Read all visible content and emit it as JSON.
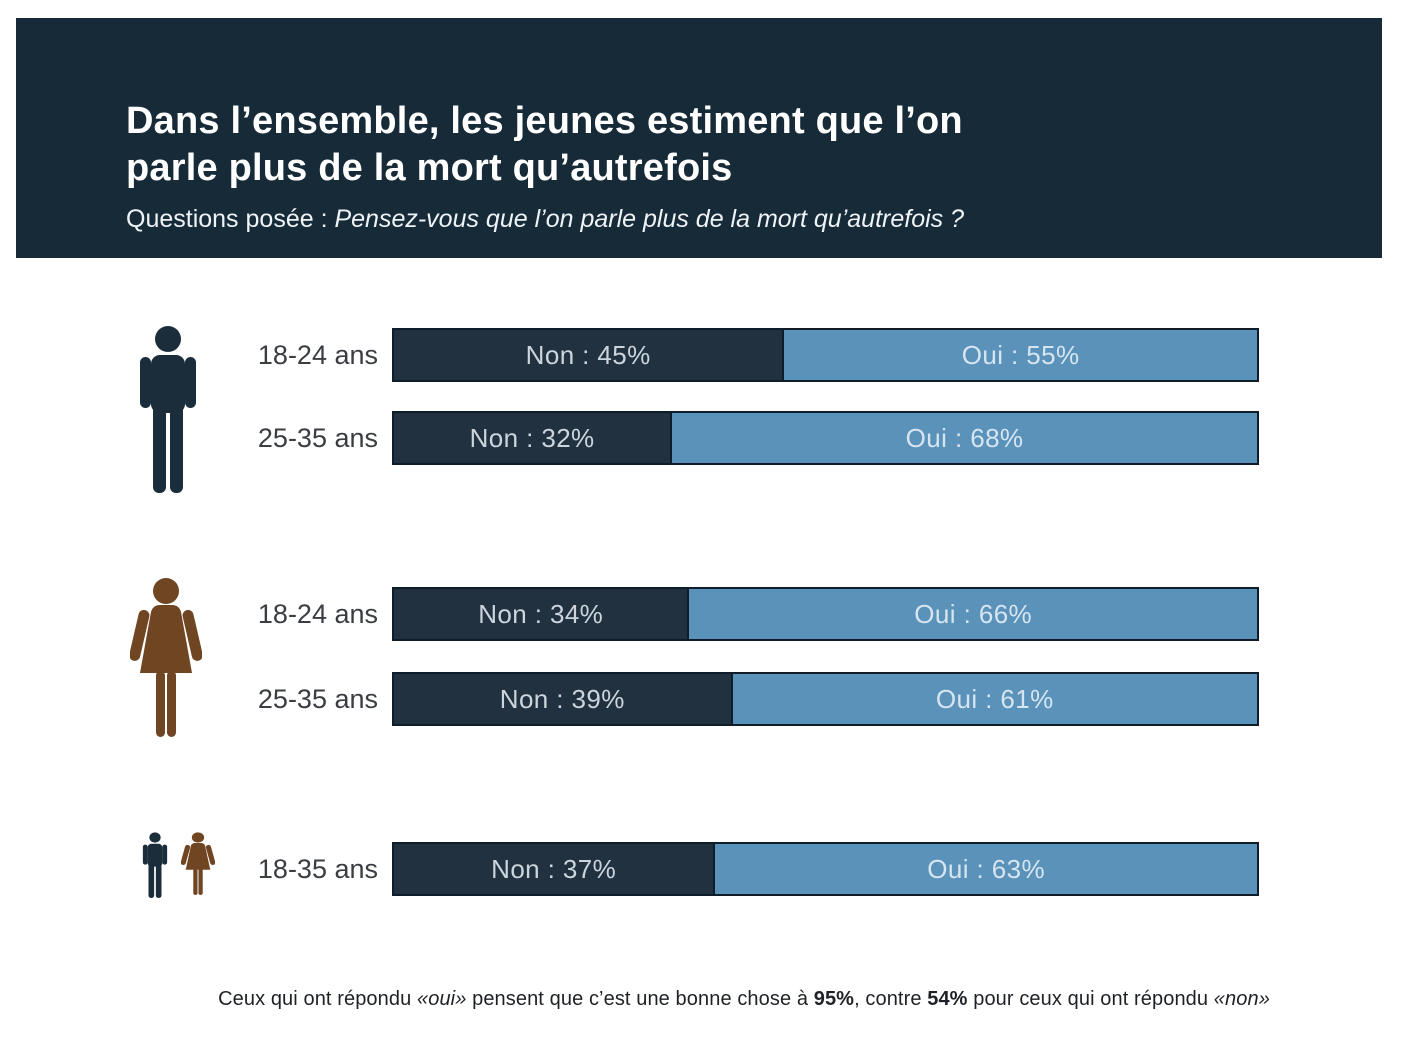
{
  "header": {
    "title_line1": "Dans l’ensemble, les jeunes estiment que l’on",
    "title_line2": "parle plus de la mort qu’autrefois",
    "question_prefix": "Questions posée : ",
    "question": "Pensez-vous que l’on parle plus de la mort qu’autrefois ?"
  },
  "chart_data": {
    "type": "bar",
    "orientation": "horizontal",
    "stacked": true,
    "unit": "%",
    "series_labels": [
      "Non",
      "Oui"
    ],
    "colors": {
      "non_fill": "#22313f",
      "oui_fill": "#5a92ba",
      "bar_border": "#0e1d29",
      "header_bg": "#172a38",
      "male_icon": "#1b2c3b",
      "female_icon": "#6f4522"
    },
    "groups": [
      {
        "icon": "male-icon",
        "icon_color": "#1b2c3b",
        "rows": [
          {
            "label": "18-24 ans",
            "non_pct": 45,
            "oui_pct": 55,
            "non_label": "Non : 45%",
            "oui_label": "Oui : 55%"
          },
          {
            "label": "25-35 ans",
            "non_pct": 32,
            "oui_pct": 68,
            "non_label": "Non : 32%",
            "oui_label": "Oui : 68%"
          }
        ]
      },
      {
        "icon": "female-icon",
        "icon_color": "#6f4522",
        "rows": [
          {
            "label": "18-24 ans",
            "non_pct": 34,
            "oui_pct": 66,
            "non_label": "Non : 34%",
            "oui_label": "Oui : 66%"
          },
          {
            "label": "25-35 ans",
            "non_pct": 39,
            "oui_pct": 61,
            "non_label": "Non : 39%",
            "oui_label": "Oui : 61%"
          }
        ]
      },
      {
        "icon": "male-female-icons",
        "icon_color": "#1b2c3b / #6f4522",
        "rows": [
          {
            "label": "18-35 ans",
            "non_pct": 37,
            "oui_pct": 63,
            "non_label": "Non : 37%",
            "oui_label": "Oui : 63%"
          }
        ]
      }
    ]
  },
  "footnote": {
    "part1": "Ceux qui ont répondu ",
    "oui_quote": "«oui»",
    "part2": " pensent que c’est une bonne chose à ",
    "pct_oui": "95%",
    "part3": ", contre ",
    "pct_non": "54%",
    "part4": " pour ceux qui ont répondu ",
    "non_quote": "«non»"
  }
}
